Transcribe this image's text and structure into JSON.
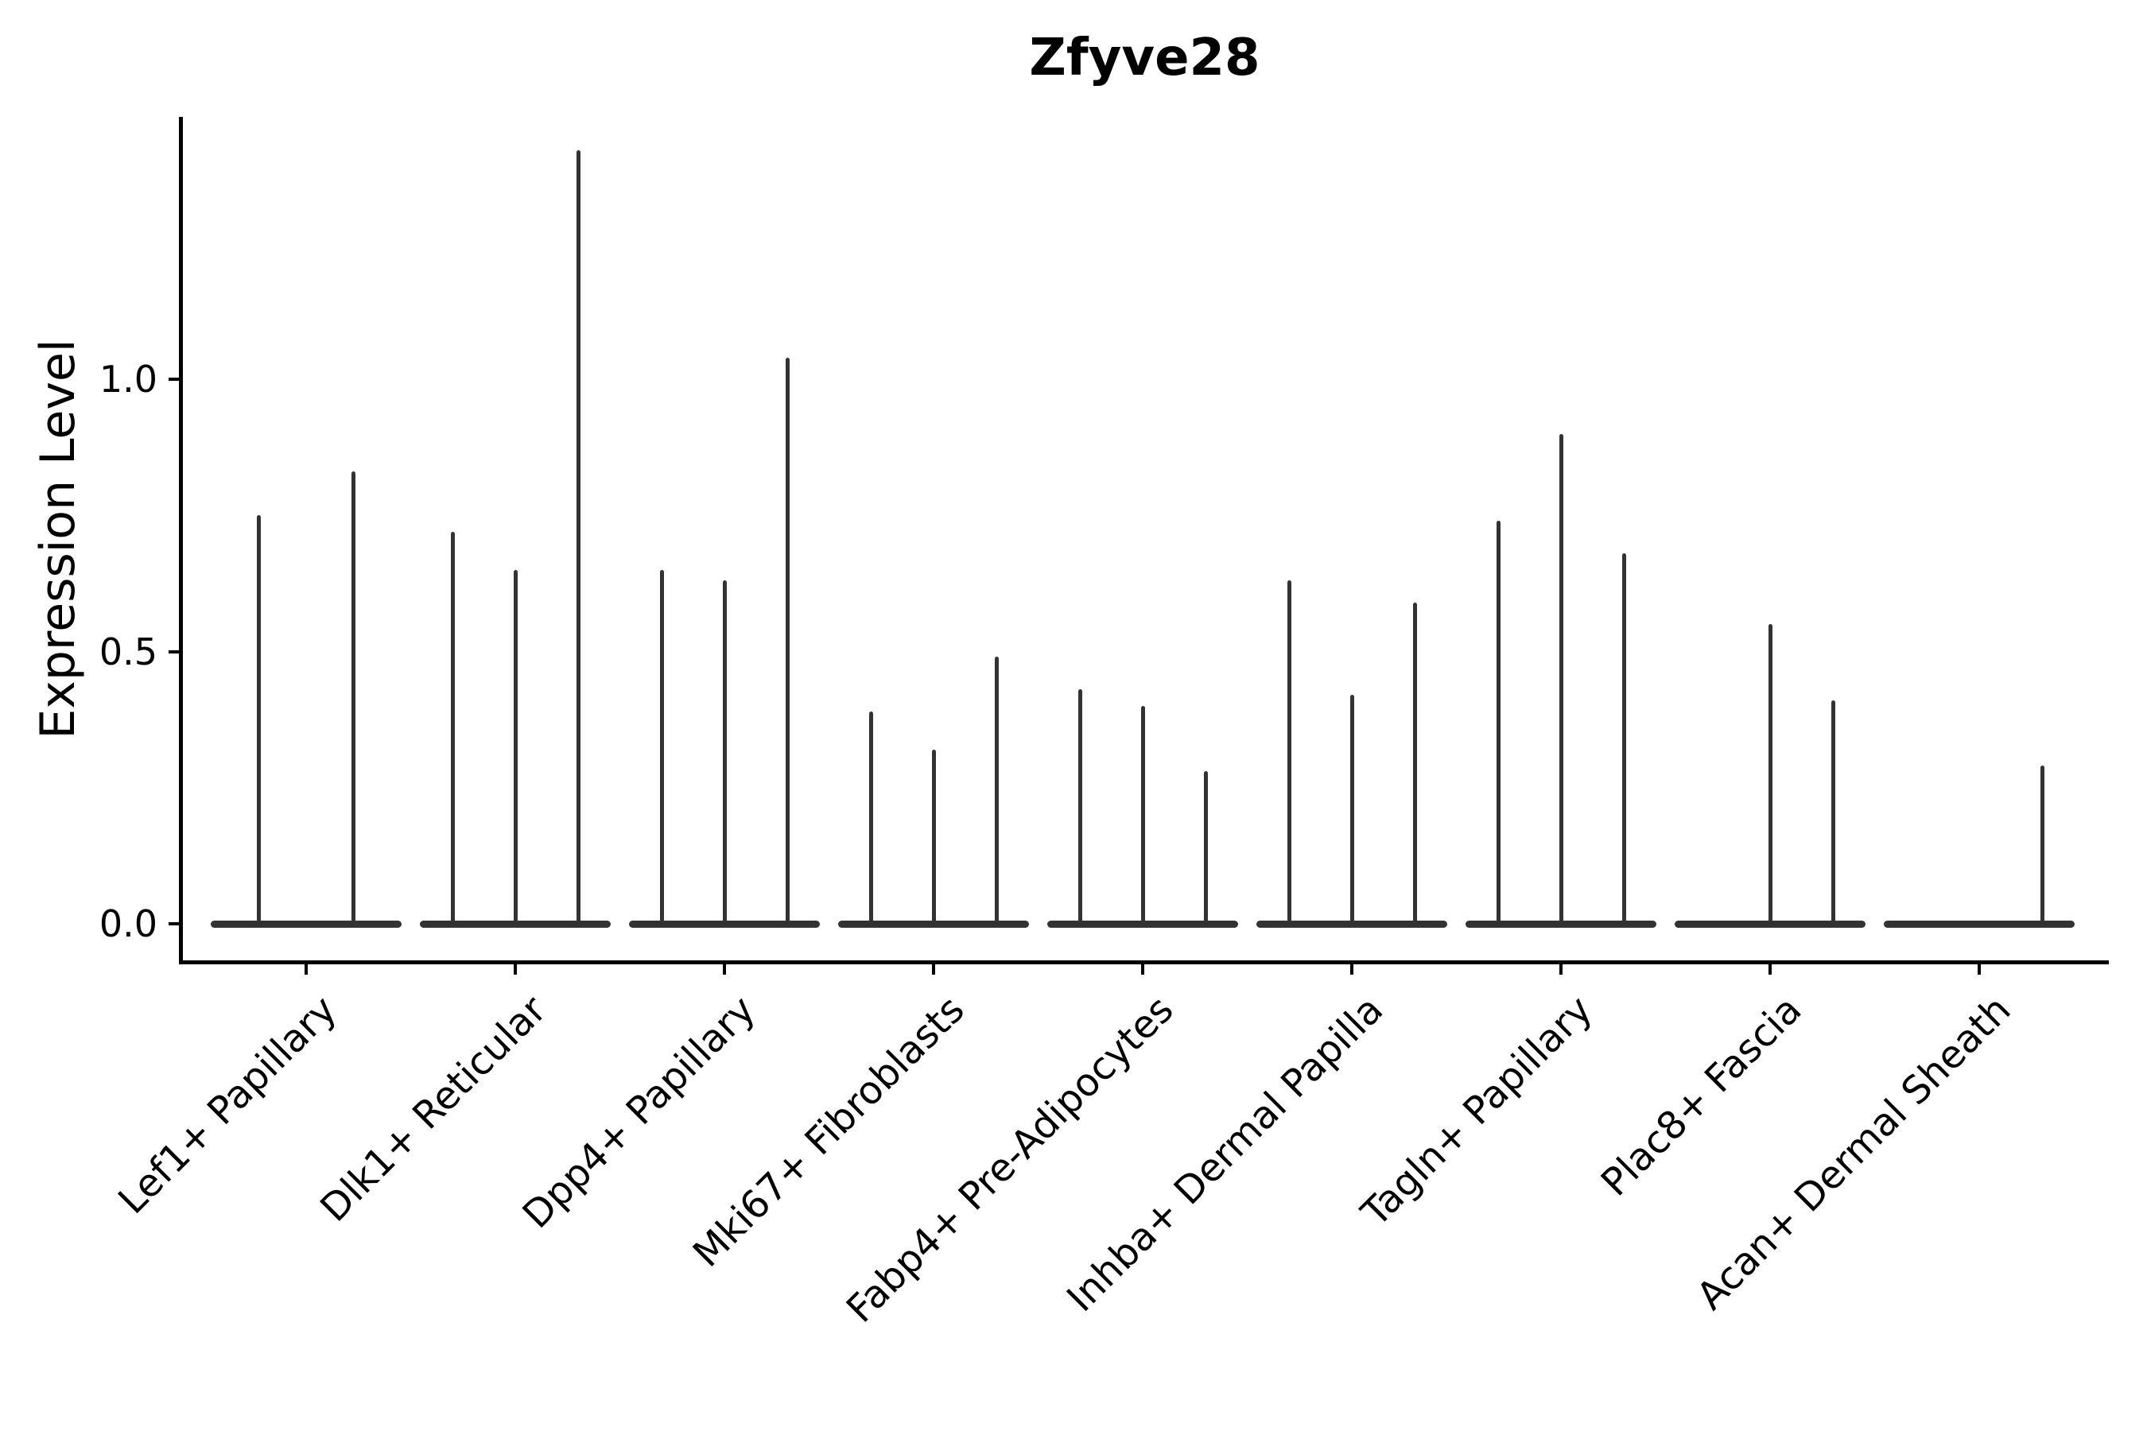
{
  "chart_data": {
    "type": "violin",
    "title": "Zfyve28",
    "ylabel": "Expression Level",
    "xlabel": "",
    "grid": false,
    "legend": "none",
    "ylim": [
      -0.07,
      1.48
    ],
    "yticks": [
      {
        "label": "0.0",
        "value": 0.0
      },
      {
        "label": "0.5",
        "value": 0.5
      },
      {
        "label": "1.0",
        "value": 1.0
      }
    ],
    "categories": [
      {
        "label": "Lef1+ Papillary",
        "violins": [
          {
            "slot_offset": -60,
            "max_expression": 0.75
          },
          {
            "slot_offset": 59,
            "max_expression": 0.83
          }
        ]
      },
      {
        "label": "Dlk1+ Reticular",
        "violins": [
          {
            "slot_offset": -79,
            "max_expression": 0.72
          },
          {
            "slot_offset": 0,
            "max_expression": 0.65
          },
          {
            "slot_offset": 79,
            "max_expression": 1.42
          }
        ]
      },
      {
        "label": "Dpp4+ Papillary",
        "violins": [
          {
            "slot_offset": -79,
            "max_expression": 0.65
          },
          {
            "slot_offset": 0,
            "max_expression": 0.63
          },
          {
            "slot_offset": 79,
            "max_expression": 1.04
          }
        ]
      },
      {
        "label": "Mki67+ Fibroblasts",
        "violins": [
          {
            "slot_offset": -79,
            "max_expression": 0.39
          },
          {
            "slot_offset": 0,
            "max_expression": 0.32
          },
          {
            "slot_offset": 79,
            "max_expression": 0.49
          }
        ]
      },
      {
        "label": "Fabp4+ Pre-Adipocytes",
        "violins": [
          {
            "slot_offset": -79,
            "max_expression": 0.43
          },
          {
            "slot_offset": 0,
            "max_expression": 0.4
          },
          {
            "slot_offset": 79,
            "max_expression": 0.28
          }
        ]
      },
      {
        "label": "Inhba+ Dermal Papilla",
        "violins": [
          {
            "slot_offset": -79,
            "max_expression": 0.63
          },
          {
            "slot_offset": 0,
            "max_expression": 0.42
          },
          {
            "slot_offset": 79,
            "max_expression": 0.59
          }
        ]
      },
      {
        "label": "Tagln+ Papillary",
        "violins": [
          {
            "slot_offset": -79,
            "max_expression": 0.74
          },
          {
            "slot_offset": 0,
            "max_expression": 0.9
          },
          {
            "slot_offset": 79,
            "max_expression": 0.68
          }
        ]
      },
      {
        "label": "Plac8+ Fascia",
        "violins": [
          {
            "slot_offset": 0,
            "max_expression": 0.55
          },
          {
            "slot_offset": 79,
            "max_expression": 0.41
          }
        ]
      },
      {
        "label": "Acan+ Dermal Sheath",
        "violins": [
          {
            "slot_offset": 79,
            "max_expression": 0.29
          }
        ]
      }
    ]
  }
}
